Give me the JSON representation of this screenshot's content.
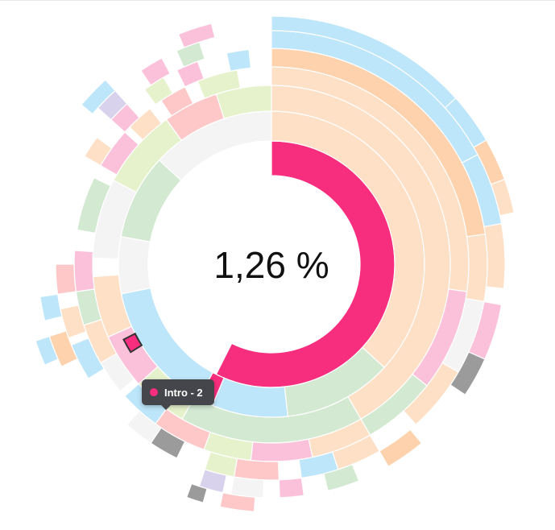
{
  "chart_data": {
    "type": "sunburst",
    "center_label": "1,26 %",
    "colors": {
      "highlight": "#f72d7e",
      "peach": "#fde0c6",
      "orange": "#fdd2ad",
      "blue": "#bde6fa",
      "green": "#d3e9d2",
      "pink": "#fcc1da",
      "rose": "#fec8c8",
      "lime": "#e6f2cc",
      "light": "#f4f4f4",
      "gray": "#9b9b9b",
      "lavender": "#d8d2ec"
    },
    "rings": [
      {
        "level": 1,
        "segments": [
          {
            "share": 57.4,
            "color": "highlight"
          },
          {
            "share": 42.6,
            "color": "none"
          }
        ]
      },
      {
        "level": 2,
        "segments": [
          {
            "share": 36.8,
            "color": "peach"
          },
          {
            "share": 11.5,
            "color": "green"
          },
          {
            "share": 8.0,
            "color": "blue"
          },
          {
            "share": 1.6,
            "color": "highlight"
          },
          {
            "share": 14.0,
            "color": "blue"
          },
          {
            "share": 6.0,
            "color": "light"
          },
          {
            "share": 9.0,
            "color": "green"
          },
          {
            "share": 13.1,
            "color": "light"
          }
        ]
      }
    ],
    "tooltip": {
      "label": "Intro - 2",
      "color": "highlight"
    }
  }
}
